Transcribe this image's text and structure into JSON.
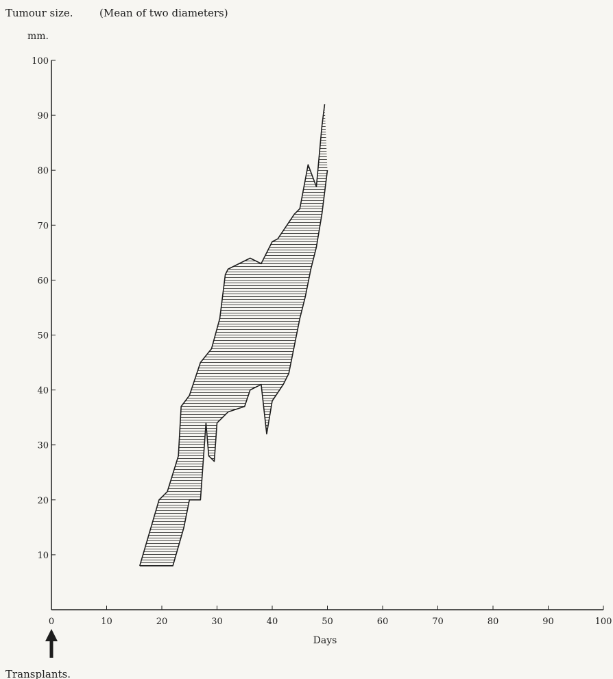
{
  "chart_data": {
    "type": "area",
    "title": "Tumour size.",
    "subtitle": "(Mean of two diameters)",
    "yunit": "mm.",
    "xlabel": "Days",
    "annotation": "Transplants.",
    "xlim": [
      0,
      100
    ],
    "ylim": [
      0,
      100
    ],
    "xticks": [
      0,
      10,
      20,
      30,
      40,
      50,
      60,
      70,
      80,
      90,
      100
    ],
    "yticks": [
      10,
      20,
      30,
      40,
      50,
      60,
      70,
      80,
      90,
      100
    ],
    "grid": false,
    "series": [
      {
        "role": "upper bound",
        "x": [
          16,
          19.5,
          21,
          23,
          23.5,
          25,
          27,
          29,
          30.5,
          31.5,
          32,
          36,
          38,
          40,
          41,
          44,
          45,
          46.5,
          48,
          49,
          49.5
        ],
        "y": [
          8,
          20,
          21.5,
          28,
          37,
          39,
          45,
          47.5,
          53,
          61,
          62,
          64,
          63,
          67,
          67.5,
          72,
          73,
          81,
          77,
          88,
          92
        ]
      },
      {
        "role": "lower bound",
        "x": [
          16,
          22,
          24,
          25,
          27,
          28,
          28.5,
          29.5,
          30,
          31,
          32,
          35,
          36,
          38,
          39,
          40,
          42,
          43,
          44,
          45,
          46,
          47,
          48,
          49,
          50
        ],
        "y": [
          8,
          8,
          15,
          20,
          20,
          34,
          28,
          27,
          34,
          35,
          36,
          37,
          40,
          41,
          32,
          38,
          41,
          43,
          48,
          53,
          57,
          62,
          66,
          72,
          80
        ]
      }
    ],
    "fill": "horizontal hatching",
    "colors": {
      "ink": "#1e1e1e",
      "background": "#f7f6f2"
    }
  }
}
